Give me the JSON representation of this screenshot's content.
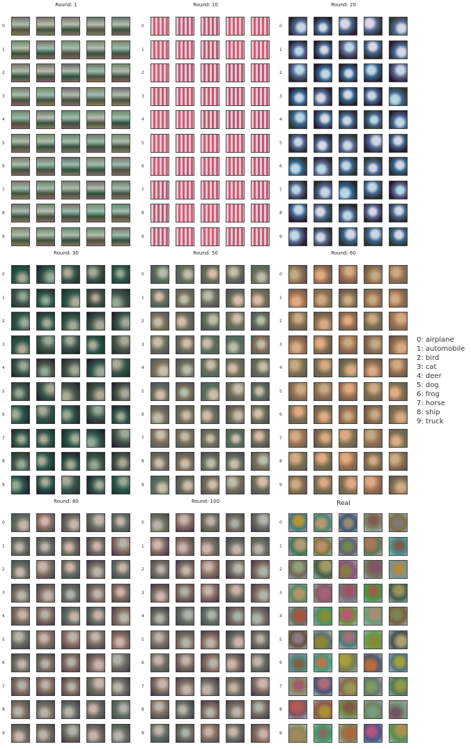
{
  "panels": [
    {
      "title": "Round: 1",
      "style": "r1"
    },
    {
      "title": "Round: 10",
      "style": "r10"
    },
    {
      "title": "Round: 20",
      "style": "r20"
    },
    {
      "title": "Round: 30",
      "style": "r30"
    },
    {
      "title": "Round: 50",
      "style": "r50"
    },
    {
      "title": "Round: 60",
      "style": "r60"
    },
    {
      "title": "Round: 80",
      "style": "r80"
    },
    {
      "title": "Round: 100",
      "style": "r100"
    },
    {
      "title": "Real",
      "style": "real"
    }
  ],
  "row_labels": [
    "0",
    "1",
    "2",
    "3",
    "4",
    "5",
    "6",
    "7",
    "8",
    "9"
  ],
  "samples_per_row": 5,
  "legend": [
    "0: airplane",
    "1: automobile",
    "2: bird",
    "3: cat",
    "4: deer",
    "5: dog",
    "6: frog",
    "7: horse",
    "8: ship",
    "9: truck"
  ]
}
